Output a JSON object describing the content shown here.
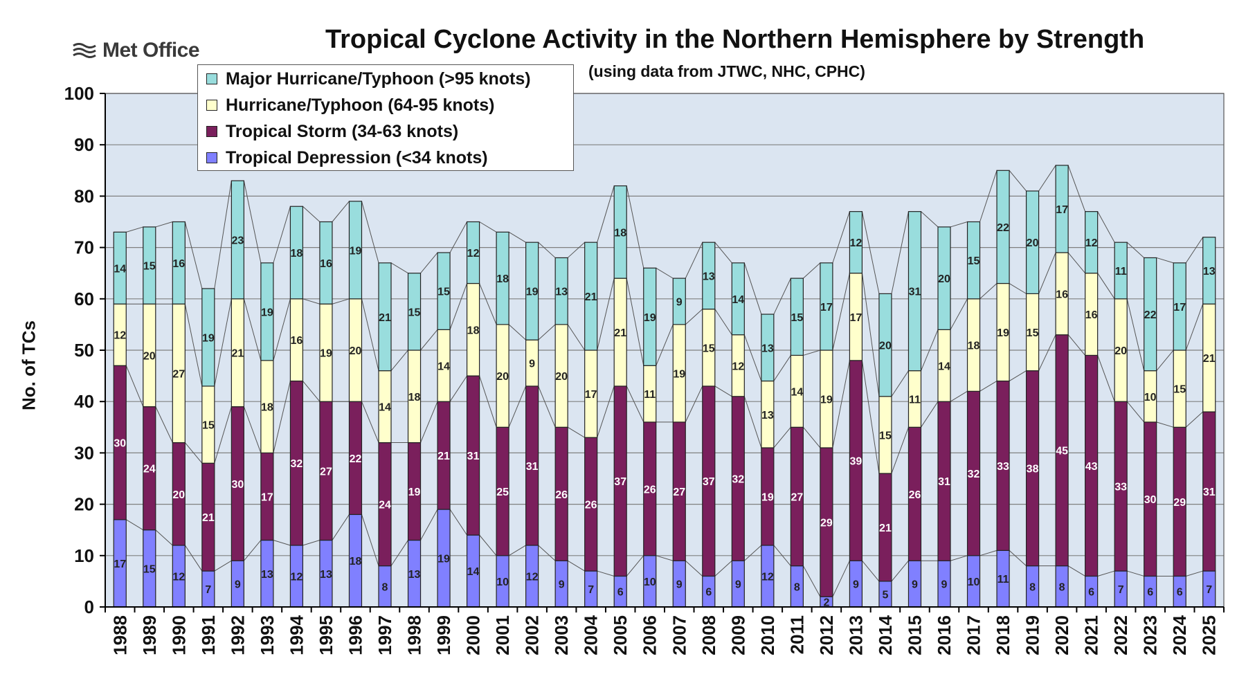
{
  "logo": {
    "text": "Met Office"
  },
  "chart_data": {
    "type": "bar",
    "stacked": true,
    "title": "Tropical Cyclone Activity in the Northern Hemisphere by Strength",
    "subtitle": "(using data from JTWC, NHC, CPHC)",
    "xlabel": "",
    "ylabel": "No. of TCs",
    "ylim": [
      0,
      100
    ],
    "yticks": [
      0,
      10,
      20,
      30,
      40,
      50,
      60,
      70,
      80,
      90,
      100
    ],
    "grid": true,
    "legend_position": "top-left",
    "categories": [
      "1988",
      "1989",
      "1990",
      "1991",
      "1992",
      "1993",
      "1994",
      "1995",
      "1996",
      "1997",
      "1998",
      "1999",
      "2000",
      "2001",
      "2002",
      "2003",
      "2004",
      "2005",
      "2006",
      "2007",
      "2008",
      "2009",
      "2010",
      "2011",
      "2012",
      "2013",
      "2014",
      "2015",
      "2016",
      "2017",
      "2018",
      "2019",
      "2020",
      "2021",
      "2022",
      "2023",
      "2024",
      "2025"
    ],
    "series": [
      {
        "name": "Tropical Depression (<34 knots)",
        "color": "#8080ff",
        "values": [
          17,
          15,
          12,
          7,
          9,
          13,
          12,
          13,
          18,
          8,
          13,
          19,
          14,
          10,
          12,
          9,
          7,
          6,
          10,
          9,
          6,
          9,
          12,
          8,
          2,
          9,
          5,
          9,
          9,
          10,
          11,
          8,
          8,
          6,
          7,
          6,
          6,
          7
        ]
      },
      {
        "name": "Tropical Storm (34-63 knots)",
        "color": "#7a1f5c",
        "values": [
          30,
          24,
          20,
          21,
          30,
          17,
          32,
          27,
          22,
          24,
          19,
          21,
          31,
          25,
          31,
          26,
          26,
          37,
          26,
          27,
          37,
          32,
          19,
          27,
          29,
          39,
          21,
          26,
          31,
          32,
          33,
          38,
          45,
          43,
          33,
          30,
          29,
          31
        ]
      },
      {
        "name": "Hurricane/Typhoon (64-95 knots)",
        "color": "#ffffcc",
        "values": [
          12,
          20,
          27,
          15,
          21,
          18,
          16,
          19,
          20,
          14,
          18,
          14,
          18,
          20,
          9,
          20,
          17,
          21,
          11,
          19,
          15,
          12,
          13,
          14,
          19,
          17,
          15,
          11,
          14,
          18,
          19,
          15,
          16,
          16,
          20,
          10,
          15,
          21
        ]
      },
      {
        "name": "Major Hurricane/Typhoon (>95 knots)",
        "color": "#99dddd",
        "values": [
          14,
          15,
          16,
          19,
          23,
          19,
          18,
          16,
          19,
          21,
          15,
          15,
          12,
          18,
          19,
          13,
          21,
          18,
          19,
          9,
          13,
          14,
          13,
          15,
          17,
          12,
          20,
          31,
          20,
          15,
          22,
          20,
          17,
          12,
          11,
          22,
          17,
          13
        ]
      }
    ],
    "colors": {
      "plot_background": "#dbe5f1",
      "gridline": "#808080",
      "axis": "#000000"
    }
  }
}
